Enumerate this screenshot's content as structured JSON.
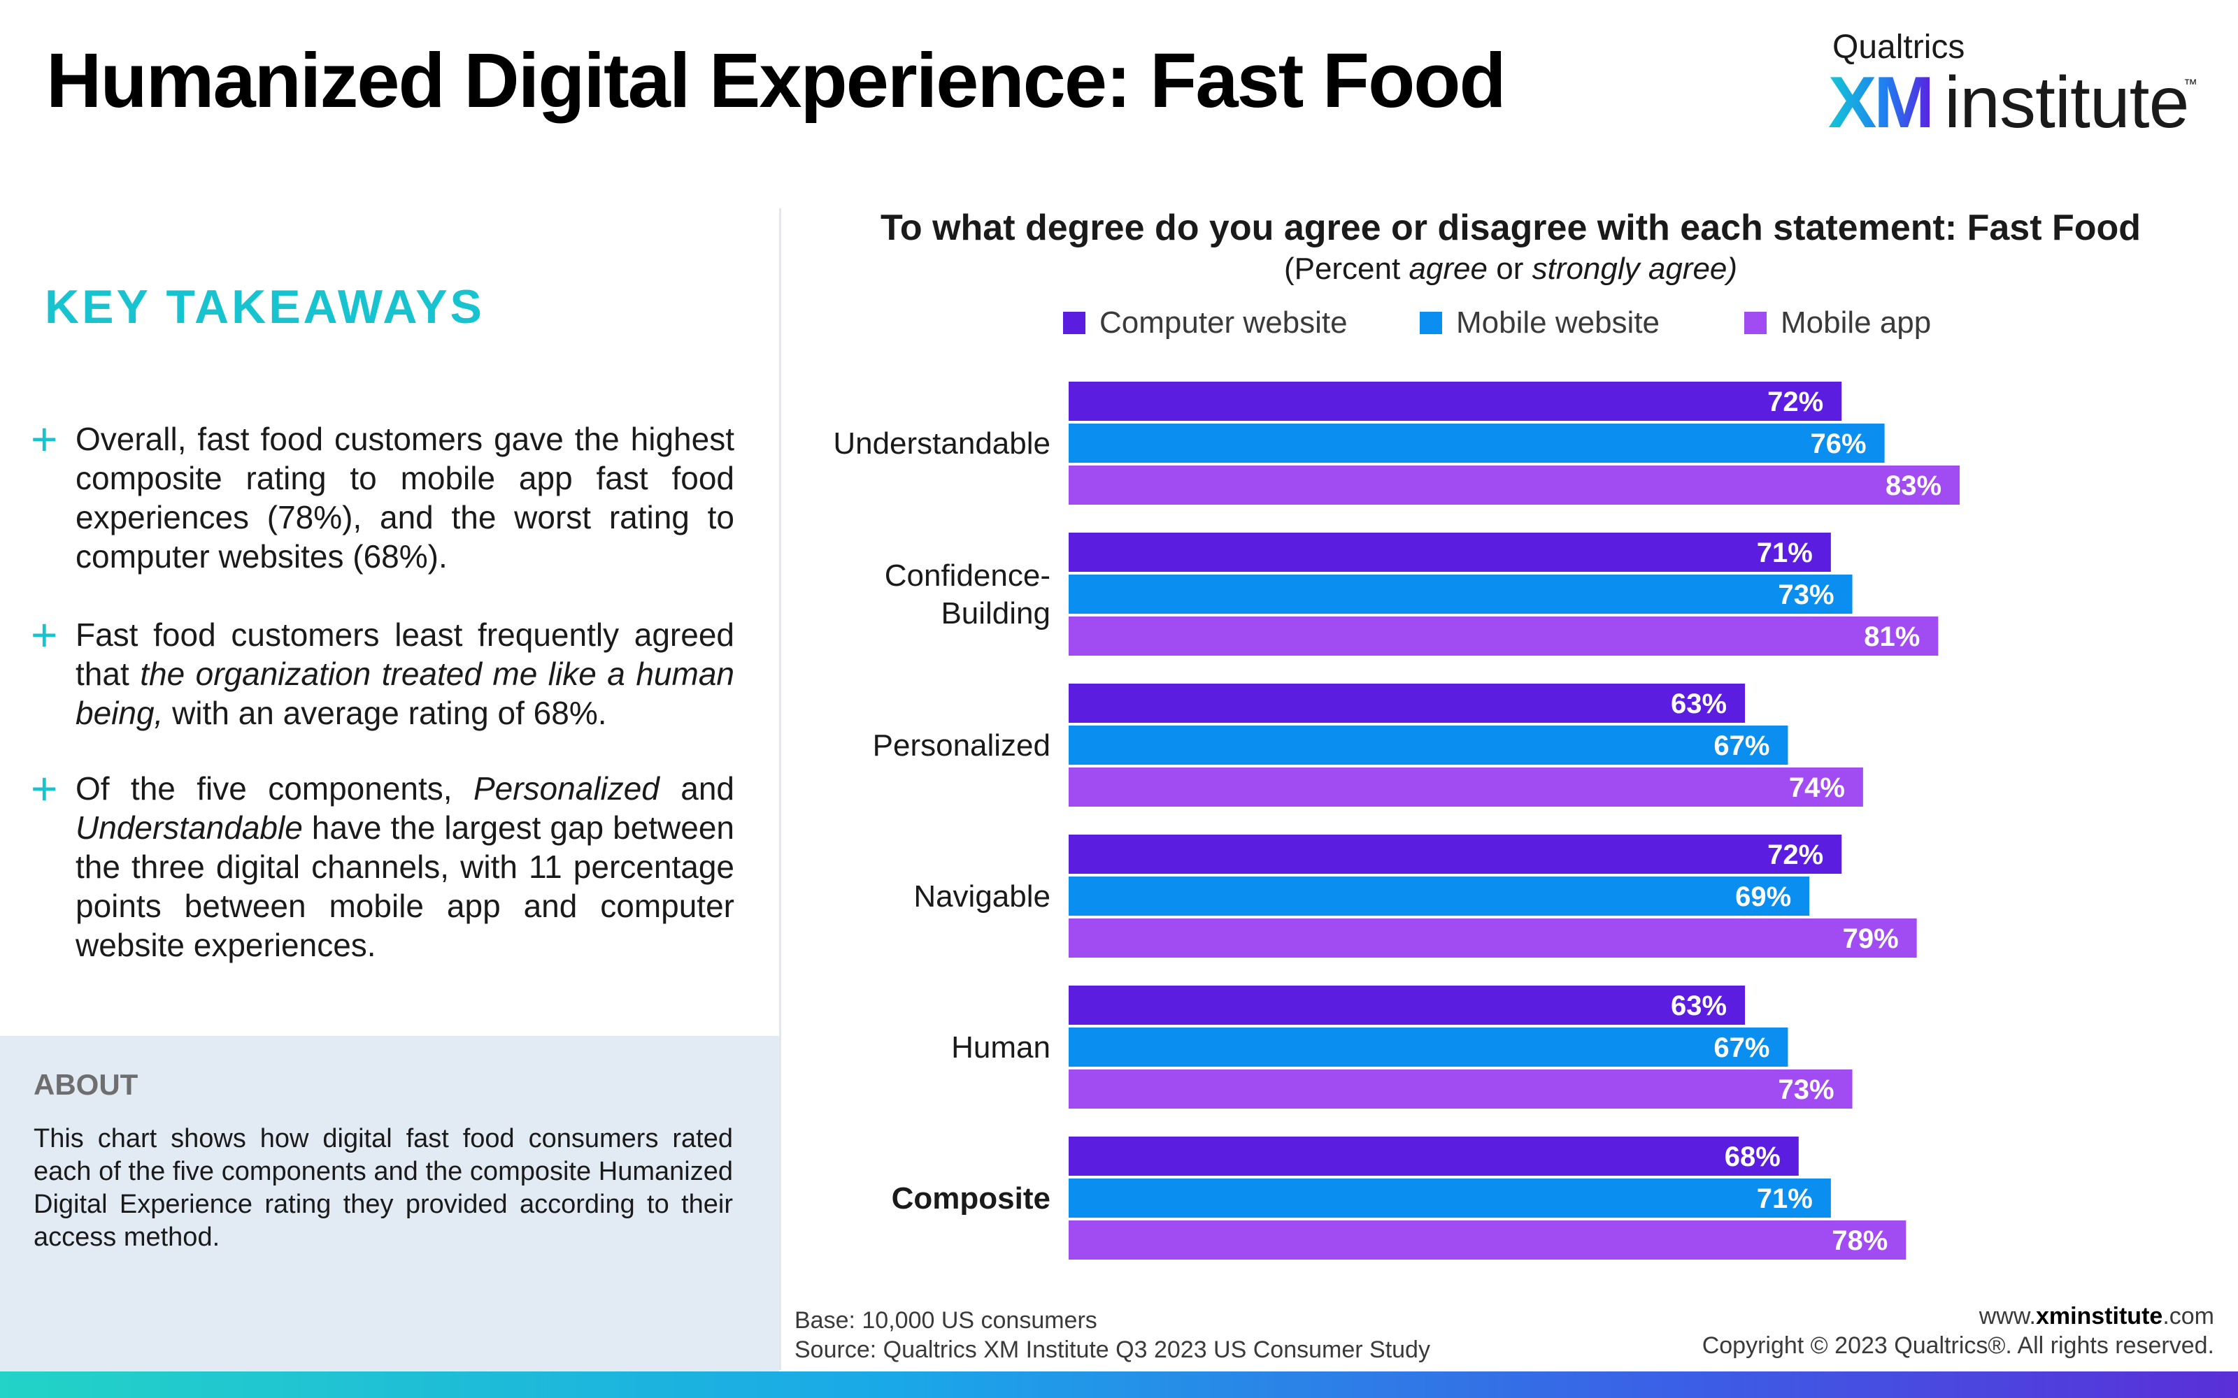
{
  "header": {
    "title": "Humanized Digital Experience: Fast Food",
    "logo": {
      "small": "Qualtrics",
      "xm": "XM",
      "institute": "institute",
      "tm": "™"
    }
  },
  "takeaways": {
    "heading": "KEY TAKEAWAYS",
    "plus_icon": "+"
  },
  "about": {
    "heading": "ABOUT",
    "text": "This chart shows how digital fast food consumers rated each of the five components and the composite Humanized Digital Experience rating they provided according to their access method."
  },
  "footer": {
    "base": "Base: 10,000 US consumers",
    "source": "Source: Qualtrics XM Institute Q3 2023 US Consumer Study",
    "url_prefix": "www.",
    "url_bold": "xminstitute",
    "url_suffix": ".com",
    "copyright": "Copyright © 2023 Qualtrics®. All rights reserved."
  },
  "colors": {
    "computer_website": "#5b1ee0",
    "mobile_website": "#0a8ef0",
    "mobile_app": "#a14bf2",
    "accent": "#17c3cf"
  },
  "chart_data": {
    "type": "bar",
    "orientation": "horizontal",
    "title": "To what degree do you agree or disagree with each statement: Fast Food",
    "subtitle": "(Percent agree or strongly agree)",
    "categories": [
      "Understandable",
      "Confidence-Building",
      "Personalized",
      "Navigable",
      "Human",
      "Composite"
    ],
    "category_lines": [
      [
        "Understandable"
      ],
      [
        "Confidence-",
        "Building"
      ],
      [
        "Personalized"
      ],
      [
        "Navigable"
      ],
      [
        "Human"
      ],
      [
        "Composite"
      ]
    ],
    "series": [
      {
        "name": "Computer website",
        "values": [
          72,
          71,
          63,
          72,
          63,
          68
        ]
      },
      {
        "name": "Mobile website",
        "values": [
          76,
          73,
          67,
          69,
          67,
          71
        ]
      },
      {
        "name": "Mobile app",
        "values": [
          83,
          81,
          74,
          79,
          73,
          78
        ]
      }
    ],
    "value_suffix": "%",
    "xlim": [
      0,
      100
    ],
    "grid": false,
    "legend": "top"
  }
}
